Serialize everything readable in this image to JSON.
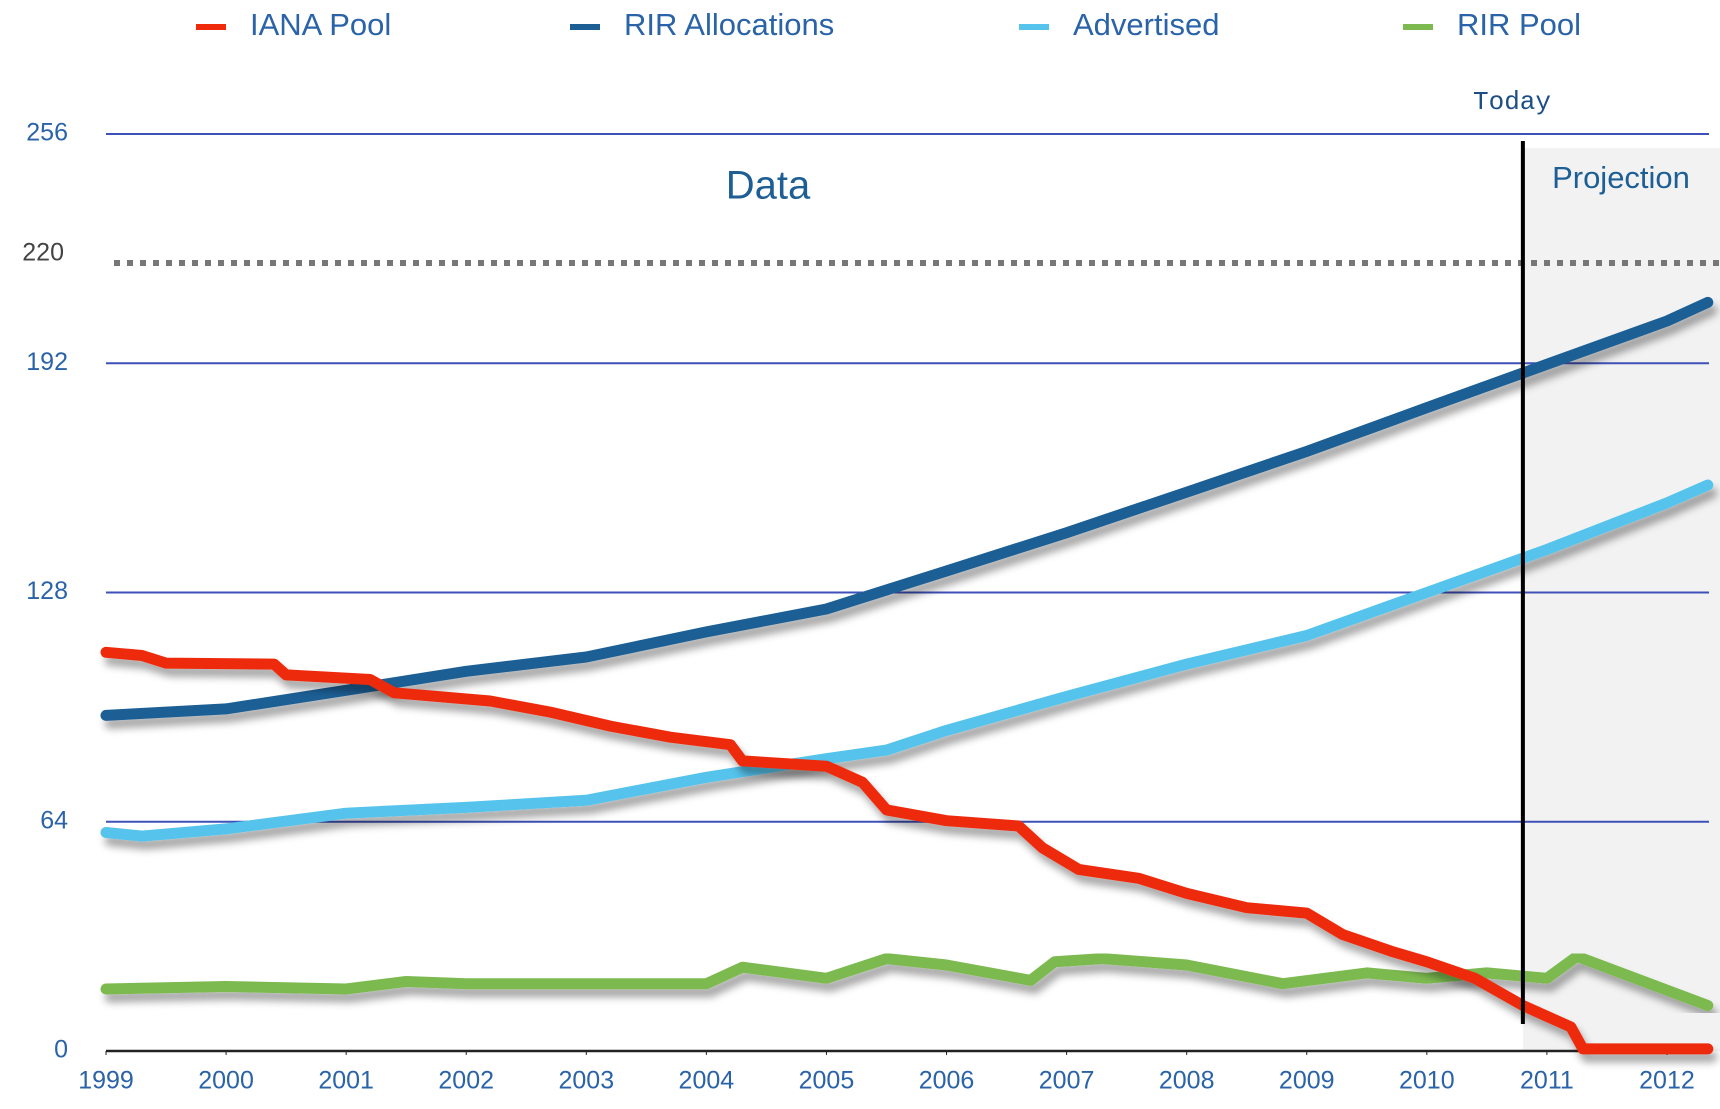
{
  "chart_data": {
    "type": "line",
    "xlim": [
      1999,
      2012.35
    ],
    "xticks": [
      1999,
      2000,
      2001,
      2002,
      2003,
      2004,
      2005,
      2006,
      2007,
      2008,
      2009,
      2010,
      2011,
      2012
    ],
    "ylim": [
      0,
      256
    ],
    "yticks": [
      0,
      64,
      128,
      192,
      256
    ],
    "grid": true,
    "legend": "top",
    "reference_line": 220,
    "annotations": {
      "data_label": "Data",
      "projection_label": "Projection",
      "today_label": "Today",
      "today_x": 2010.8
    },
    "series": [
      {
        "name": "IANA Pool",
        "color": "#ee2a0b",
        "x": [
          1999,
          1999.3,
          1999.5,
          2000.4,
          2000.5,
          2001.2,
          2001.4,
          2002.2,
          2002.7,
          2003.2,
          2003.7,
          2004.2,
          2004.3,
          2005,
          2005.3,
          2005.5,
          2006,
          2006.6,
          2006.8,
          2007.1,
          2007.6,
          2008,
          2008.5,
          2009,
          2009.3,
          2009.7,
          2010,
          2010.4,
          2010.8,
          2011,
          2011.2,
          2011.3,
          2012.34
        ],
        "values": [
          111.3,
          110.4,
          108.3,
          108,
          105,
          103.7,
          100,
          97.7,
          94.6,
          90.7,
          87.6,
          85.5,
          81,
          79.5,
          75,
          67.3,
          64.3,
          62.8,
          56.7,
          50.7,
          48.2,
          44,
          40,
          38.5,
          32.5,
          27.9,
          24.9,
          20.3,
          12.7,
          9.7,
          6.7,
          0.6,
          0.6
        ]
      },
      {
        "name": "RIR Allocations",
        "color": "#1d5f95",
        "x": [
          1999,
          2000,
          2001,
          2002,
          2003,
          2004,
          2005,
          2006,
          2007,
          2008,
          2009,
          2010,
          2011,
          2012,
          2012.34
        ],
        "values": [
          93.7,
          95.5,
          100.7,
          106,
          110,
          117,
          123.4,
          134,
          144.7,
          156,
          167.4,
          179.6,
          191.7,
          203.8,
          209
        ]
      },
      {
        "name": "Advertised",
        "color": "#55c3eb",
        "x": [
          1999,
          1999.3,
          2000,
          2001,
          2002,
          2003,
          2004,
          2005,
          2005.5,
          2006,
          2007,
          2008,
          2009,
          2010,
          2011,
          2012,
          2012.34
        ],
        "values": [
          61,
          60,
          62,
          66.4,
          68,
          70,
          76.4,
          81.6,
          84,
          89.5,
          99,
          108,
          116,
          128,
          140,
          153,
          158
        ]
      },
      {
        "name": "RIR Pool",
        "color": "#7cba4f",
        "x": [
          1999,
          2000,
          2001,
          2001.5,
          2002,
          2003,
          2004,
          2004.3,
          2005,
          2005.5,
          2006,
          2006.7,
          2006.9,
          2007.3,
          2008,
          2008.8,
          2009.5,
          2010,
          2010.5,
          2011,
          2011.25,
          2012.34
        ],
        "values": [
          17.3,
          18,
          17.3,
          19.4,
          18.8,
          18.8,
          18.8,
          23.4,
          20.3,
          25.8,
          24,
          19.7,
          24.9,
          25.8,
          24,
          18.8,
          21.8,
          20.3,
          21.8,
          20.3,
          26.4,
          12.7
        ]
      }
    ]
  }
}
